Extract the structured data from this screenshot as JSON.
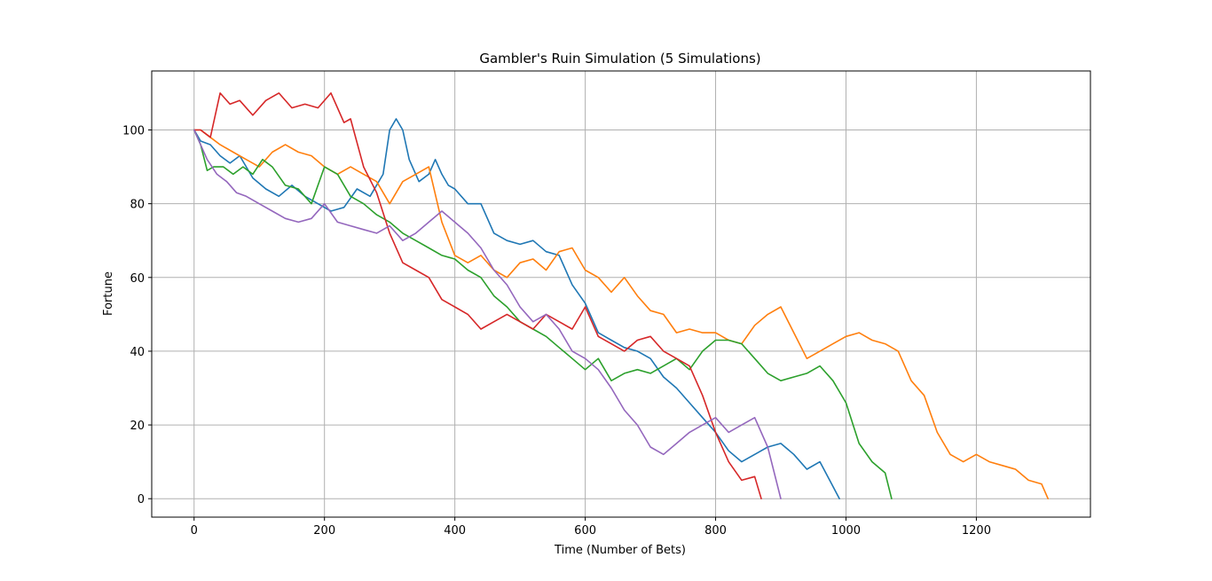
{
  "chart_data": {
    "type": "line",
    "title": "Gambler's Ruin Simulation (5 Simulations)",
    "xlabel": "Time (Number of Bets)",
    "ylabel": "Fortune",
    "xlim": [
      -65,
      1375
    ],
    "ylim": [
      -5,
      116
    ],
    "xticks": [
      0,
      200,
      400,
      600,
      800,
      1000,
      1200
    ],
    "yticks": [
      0,
      20,
      40,
      60,
      80,
      100
    ],
    "grid": true,
    "legend": "none",
    "series": [
      {
        "color": "#1f77b4",
        "x": [
          0,
          10,
          25,
          40,
          55,
          70,
          90,
          110,
          130,
          150,
          170,
          190,
          210,
          230,
          250,
          270,
          290,
          300,
          310,
          320,
          330,
          345,
          360,
          370,
          380,
          390,
          400,
          420,
          440,
          460,
          480,
          500,
          520,
          540,
          560,
          580,
          600,
          620,
          640,
          660,
          680,
          700,
          720,
          740,
          760,
          780,
          800,
          820,
          840,
          860,
          880,
          900,
          920,
          940,
          960,
          975,
          990
        ],
        "y": [
          100,
          97,
          96,
          93,
          91,
          93,
          87,
          84,
          82,
          85,
          82,
          80,
          78,
          79,
          84,
          82,
          88,
          100,
          103,
          100,
          92,
          86,
          88,
          92,
          88,
          85,
          84,
          80,
          80,
          72,
          70,
          69,
          70,
          67,
          66,
          58,
          53,
          45,
          43,
          41,
          40,
          38,
          33,
          30,
          26,
          22,
          18,
          13,
          10,
          12,
          14,
          15,
          12,
          8,
          10,
          5,
          0
        ]
      },
      {
        "color": "#ff7f0e",
        "x": [
          0,
          10,
          25,
          40,
          60,
          80,
          100,
          120,
          140,
          160,
          180,
          200,
          220,
          240,
          260,
          280,
          300,
          320,
          340,
          360,
          380,
          400,
          420,
          440,
          460,
          480,
          500,
          520,
          540,
          560,
          580,
          600,
          620,
          640,
          660,
          680,
          700,
          720,
          740,
          760,
          780,
          800,
          820,
          840,
          860,
          880,
          900,
          920,
          940,
          960,
          980,
          1000,
          1020,
          1040,
          1060,
          1080,
          1100,
          1120,
          1140,
          1160,
          1180,
          1200,
          1220,
          1240,
          1260,
          1280,
          1300,
          1310
        ],
        "y": [
          100,
          100,
          98,
          96,
          94,
          92,
          90,
          94,
          96,
          94,
          93,
          90,
          88,
          90,
          88,
          86,
          80,
          86,
          88,
          90,
          75,
          66,
          64,
          66,
          62,
          60,
          64,
          65,
          62,
          67,
          68,
          62,
          60,
          56,
          60,
          55,
          51,
          50,
          45,
          46,
          45,
          45,
          43,
          42,
          47,
          50,
          52,
          45,
          38,
          40,
          42,
          44,
          45,
          43,
          42,
          40,
          32,
          28,
          18,
          12,
          10,
          12,
          10,
          9,
          8,
          5,
          4,
          0
        ]
      },
      {
        "color": "#2ca02c",
        "x": [
          0,
          10,
          20,
          30,
          45,
          60,
          75,
          90,
          105,
          120,
          140,
          160,
          180,
          200,
          220,
          240,
          260,
          280,
          300,
          320,
          340,
          360,
          380,
          400,
          420,
          440,
          460,
          480,
          500,
          520,
          540,
          560,
          580,
          600,
          620,
          640,
          660,
          680,
          700,
          720,
          740,
          760,
          780,
          800,
          820,
          840,
          860,
          880,
          900,
          920,
          940,
          960,
          980,
          1000,
          1020,
          1040,
          1060,
          1070
        ],
        "y": [
          100,
          96,
          89,
          90,
          90,
          88,
          90,
          88,
          92,
          90,
          85,
          84,
          80,
          90,
          88,
          82,
          80,
          77,
          75,
          72,
          70,
          68,
          66,
          65,
          62,
          60,
          55,
          52,
          48,
          46,
          44,
          41,
          38,
          35,
          38,
          32,
          34,
          35,
          34,
          36,
          38,
          35,
          40,
          43,
          43,
          42,
          38,
          34,
          32,
          33,
          34,
          36,
          32,
          26,
          15,
          10,
          7,
          0
        ]
      },
      {
        "color": "#d62728",
        "x": [
          0,
          10,
          25,
          40,
          55,
          70,
          90,
          110,
          130,
          150,
          170,
          190,
          210,
          230,
          240,
          260,
          280,
          300,
          320,
          340,
          360,
          380,
          400,
          420,
          440,
          460,
          480,
          500,
          520,
          540,
          560,
          580,
          600,
          620,
          640,
          660,
          680,
          700,
          720,
          740,
          760,
          780,
          800,
          820,
          840,
          860,
          870
        ],
        "y": [
          100,
          100,
          98,
          110,
          107,
          108,
          104,
          108,
          110,
          106,
          107,
          106,
          110,
          102,
          103,
          90,
          83,
          72,
          64,
          62,
          60,
          54,
          52,
          50,
          46,
          48,
          50,
          48,
          46,
          50,
          48,
          46,
          52,
          44,
          42,
          40,
          43,
          44,
          40,
          38,
          36,
          28,
          18,
          10,
          5,
          6,
          0
        ]
      },
      {
        "color": "#9467bd",
        "x": [
          0,
          10,
          20,
          35,
          50,
          65,
          80,
          100,
          120,
          140,
          160,
          180,
          200,
          220,
          240,
          260,
          280,
          300,
          320,
          340,
          360,
          380,
          400,
          420,
          440,
          460,
          480,
          500,
          520,
          540,
          560,
          580,
          600,
          620,
          640,
          660,
          680,
          700,
          720,
          740,
          760,
          780,
          800,
          820,
          840,
          860,
          880,
          900
        ],
        "y": [
          100,
          96,
          92,
          88,
          86,
          83,
          82,
          80,
          78,
          76,
          75,
          76,
          80,
          75,
          74,
          73,
          72,
          74,
          70,
          72,
          75,
          78,
          75,
          72,
          68,
          62,
          58,
          52,
          48,
          50,
          46,
          40,
          38,
          35,
          30,
          24,
          20,
          14,
          12,
          15,
          18,
          20,
          22,
          18,
          20,
          22,
          14,
          0
        ]
      }
    ]
  }
}
